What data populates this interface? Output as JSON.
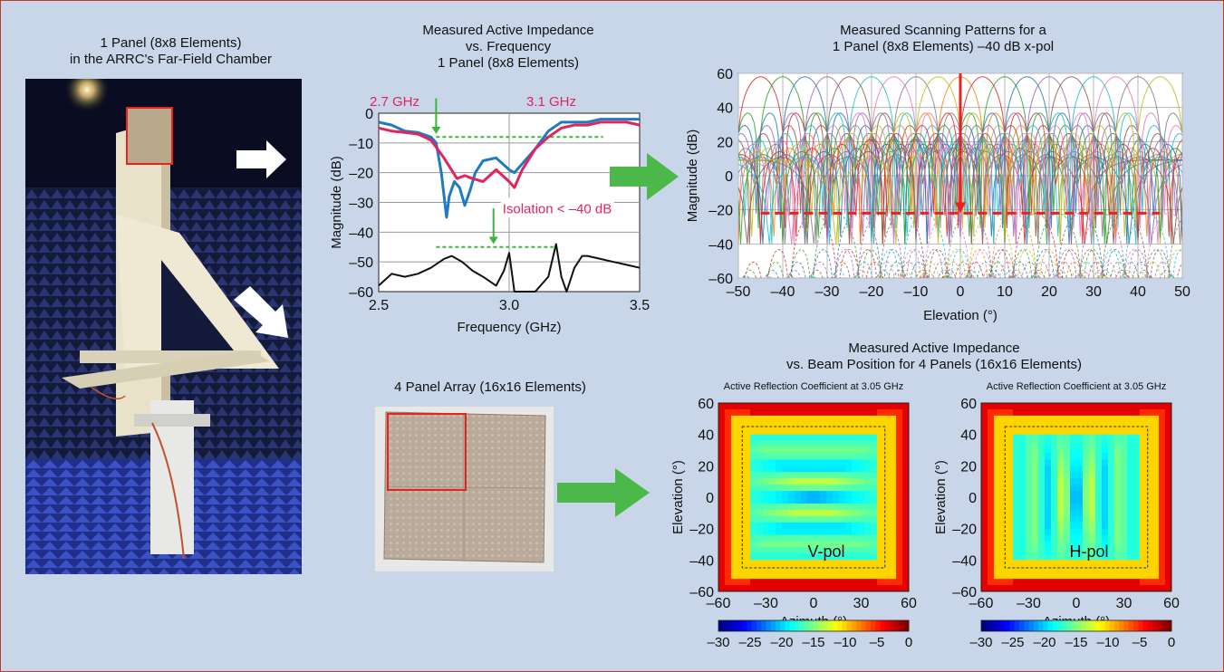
{
  "figure": {
    "photo_caption_1": "1 Panel (8x8 Elements)",
    "photo_caption_2": "in the ARRC's Far-Field Chamber",
    "array_caption": "4 Panel Array (16x16 Elements)"
  },
  "colors": {
    "background": "#c9d6ea",
    "border": "#c0392b",
    "blue_trace": "#1f7ac2",
    "pink_trace": "#e0245e",
    "green_arrow": "#4bb849",
    "red_marker": "#e8231f"
  },
  "chart_data": [
    {
      "id": "impedance_vs_frequency",
      "type": "line",
      "title": [
        "Measured Active Impedance",
        "vs. Frequency",
        "1 Panel (8x8 Elements)"
      ],
      "xlabel": "Frequency (GHz)",
      "ylabel": "Magnitude (dB)",
      "xlim": [
        2.5,
        3.5
      ],
      "ylim": [
        -60,
        0
      ],
      "xticks": [
        2.5,
        3.0,
        3.5
      ],
      "xtick_labels": [
        "2.5",
        "3.0",
        "3.5"
      ],
      "yticks": [
        0,
        -10,
        -20,
        -30,
        -40,
        -50,
        -60
      ],
      "ytick_labels": [
        "0",
        "–10",
        "–20",
        "–30",
        "–40",
        "–50",
        "–60"
      ],
      "grid": true,
      "series": [
        {
          "color": "#1f7ac2",
          "x": [
            2.5,
            2.55,
            2.6,
            2.65,
            2.7,
            2.72,
            2.74,
            2.76,
            2.77,
            2.79,
            2.81,
            2.83,
            2.85,
            2.87,
            2.9,
            2.95,
            3.0,
            3.02,
            3.05,
            3.1,
            3.15,
            3.2,
            3.25,
            3.3,
            3.35,
            3.4,
            3.45,
            3.5
          ],
          "y": [
            -3,
            -4,
            -6,
            -6.5,
            -8,
            -10,
            -20,
            -35,
            -28,
            -23,
            -25,
            -31,
            -26,
            -20,
            -16,
            -15,
            -19,
            -20,
            -17,
            -12,
            -6,
            -3,
            -3,
            -3,
            -2,
            -2,
            -2,
            -2
          ]
        },
        {
          "color": "#e0245e",
          "x": [
            2.5,
            2.55,
            2.6,
            2.65,
            2.7,
            2.75,
            2.8,
            2.83,
            2.86,
            2.9,
            2.95,
            3.0,
            3.02,
            3.05,
            3.1,
            3.15,
            3.2,
            3.25,
            3.3,
            3.35,
            3.4,
            3.45,
            3.5
          ],
          "y": [
            -5,
            -6,
            -6.5,
            -7,
            -9,
            -15,
            -22,
            -21,
            -22,
            -23,
            -19,
            -23,
            -25,
            -19,
            -12,
            -8,
            -5,
            -4,
            -4,
            -3,
            -3,
            -3,
            -4
          ]
        },
        {
          "color": "#111111",
          "x": [
            2.5,
            2.55,
            2.6,
            2.65,
            2.7,
            2.75,
            2.78,
            2.82,
            2.86,
            2.9,
            2.95,
            2.98,
            3.0,
            3.02,
            3.05,
            3.1,
            3.15,
            3.18,
            3.2,
            3.22,
            3.25,
            3.28,
            3.3,
            3.35,
            3.4,
            3.45,
            3.5
          ],
          "y": [
            -58,
            -54,
            -55,
            -54,
            -52,
            -49,
            -48,
            -50,
            -53,
            -55,
            -58,
            -53,
            -47,
            -60,
            -60,
            -60,
            -55,
            -44,
            -55,
            -60,
            -52,
            -48,
            -48,
            -49,
            -50,
            -51,
            -52
          ]
        }
      ],
      "reference_lines": [
        {
          "kind": "dashed-green",
          "x": [
            2.72,
            3.36
          ],
          "y": -8
        },
        {
          "kind": "dashed-green",
          "x": [
            2.72,
            3.17
          ],
          "y": -45
        }
      ],
      "annotations": [
        {
          "text": "2.7 GHz",
          "color": "#e0245e",
          "arrow_x": 2.72,
          "arrow_from_y": 5,
          "arrow_to_y": -7
        },
        {
          "text": "3.1 GHz",
          "color": "#e0245e"
        },
        {
          "text": "Isolation < –40 dB",
          "color": "#e0245e",
          "arrow_x": 2.94,
          "arrow_from_y": -32,
          "arrow_to_y": -44
        }
      ]
    },
    {
      "id": "scanning_patterns",
      "type": "line",
      "title": [
        "Measured Scanning Patterns for a",
        "1 Panel (8x8 Elements) –40 dB x-pol"
      ],
      "xlabel": "Elevation (°)",
      "ylabel": "Magnitude (dB)",
      "xlim": [
        -50,
        50
      ],
      "ylim": [
        -60,
        60
      ],
      "xticks": [
        -50,
        -40,
        -30,
        -20,
        -10,
        0,
        10,
        20,
        30,
        40,
        50
      ],
      "xtick_labels": [
        "–50",
        "–40",
        "–30",
        "–20",
        "–10",
        "0",
        "10",
        "20",
        "30",
        "40",
        "50"
      ],
      "yticks": [
        60,
        40,
        20,
        0,
        -20,
        -40,
        -60
      ],
      "ytick_labels": [
        "60",
        "40",
        "20",
        "0",
        "–20",
        "–40",
        "–60"
      ],
      "grid": true,
      "scan_angles": [
        -45,
        -40,
        -35,
        -30,
        -25,
        -20,
        -15,
        -10,
        -5,
        0,
        5,
        10,
        15,
        20,
        25,
        30,
        35,
        40,
        45
      ],
      "copol_peak_db": 58,
      "xpol_peak_db": 18,
      "xpol_floor_db": -58,
      "reference_lines": [
        {
          "kind": "dashed-red",
          "x": [
            -45,
            45
          ],
          "y": -22
        },
        {
          "kind": "arrow-red",
          "x": 0,
          "y": [
            60,
            -22
          ]
        }
      ]
    },
    {
      "id": "active_reflection_vpol",
      "type": "heatmap",
      "group_title": [
        "Measured Active Impedance",
        "vs. Beam Position for 4 Panels (16x16 Elements)"
      ],
      "title": "Active Reflection Coefficient at 3.05 GHz",
      "label": "V-pol",
      "xlabel": "Azimuth (°)",
      "ylabel": "Elevation (°)",
      "xlim": [
        -60,
        60
      ],
      "ylim": [
        -60,
        60
      ],
      "xticks": [
        -60,
        -30,
        0,
        30,
        60
      ],
      "xtick_labels": [
        "–60",
        "–30",
        "0",
        "30",
        "60"
      ],
      "yticks": [
        60,
        40,
        20,
        0,
        -20,
        -40,
        -60
      ],
      "ytick_labels": [
        "60",
        "40",
        "20",
        "0",
        "–20",
        "–40",
        "–60"
      ],
      "scan_box": [
        -45,
        45,
        -45,
        45
      ],
      "colorbar": {
        "range": [
          -30,
          0
        ],
        "ticks": [
          -30,
          -25,
          -20,
          -15,
          -10,
          -5,
          0
        ],
        "tick_labels": [
          "–30",
          "–25",
          "–20",
          "–15",
          "–10",
          "–5",
          "0"
        ]
      }
    },
    {
      "id": "active_reflection_hpol",
      "type": "heatmap",
      "title": "Active Reflection Coefficient at 3.05 GHz",
      "label": "H-pol",
      "xlabel": "Azimuth (°)",
      "ylabel": "Elevation (°)",
      "xlim": [
        -60,
        60
      ],
      "ylim": [
        -60,
        60
      ],
      "xticks": [
        -60,
        -30,
        0,
        30,
        60
      ],
      "xtick_labels": [
        "–60",
        "–30",
        "0",
        "30",
        "60"
      ],
      "yticks": [
        60,
        40,
        20,
        0,
        -20,
        -40,
        -60
      ],
      "ytick_labels": [
        "60",
        "40",
        "20",
        "0",
        "–20",
        "–40",
        "–60"
      ],
      "scan_box": [
        -45,
        45,
        -45,
        45
      ],
      "colorbar": {
        "range": [
          -30,
          0
        ],
        "ticks": [
          -30,
          -25,
          -20,
          -15,
          -10,
          -5,
          0
        ],
        "tick_labels": [
          "–30",
          "–25",
          "–20",
          "–15",
          "–10",
          "–5",
          "0"
        ]
      }
    }
  ]
}
